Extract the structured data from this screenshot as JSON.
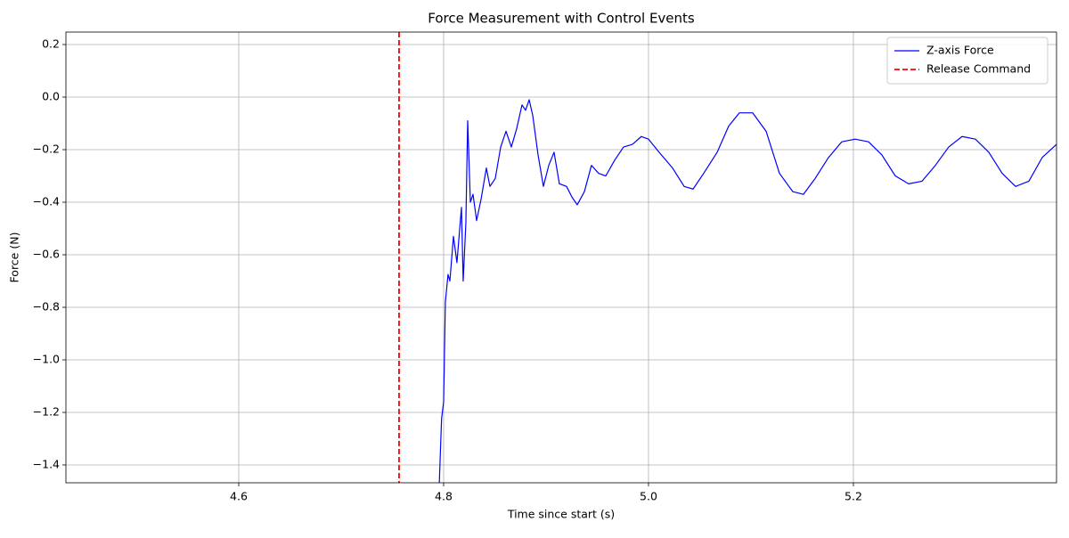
{
  "chart_data": {
    "type": "line",
    "title": "Force Measurement with Control Events",
    "x_label": "Time since start (s)",
    "y_label": "Force (N)",
    "xlim": [
      4.4313,
      5.3983
    ],
    "ylim": [
      -1.4678,
      0.2475
    ],
    "xticks": [
      4.6,
      4.8,
      {
        "value": 5.0,
        "label": "5.0"
      },
      5.2
    ],
    "yticks": [
      {
        "value": -1.4,
        "label": "−1.4"
      },
      {
        "value": -1.2,
        "label": "−1.2"
      },
      {
        "value": -1.0,
        "label": "−1.0"
      },
      {
        "value": -0.8,
        "label": "−0.8"
      },
      {
        "value": -0.6,
        "label": "−0.6"
      },
      {
        "value": -0.4,
        "label": "−0.4"
      },
      {
        "value": -0.2,
        "label": "−0.2"
      },
      {
        "value": 0,
        "label": "0.0"
      },
      0.2
    ],
    "grid": true,
    "legend": "upper right",
    "series": [
      {
        "name": "Z-axis Force",
        "color": "#0000ff",
        "x": [
          4.7955,
          4.798,
          4.8,
          4.8017,
          4.8043,
          4.8061,
          4.8096,
          4.813,
          4.8174,
          4.8191,
          4.8217,
          4.8235,
          4.8261,
          4.8287,
          4.8322,
          4.8365,
          4.8417,
          4.8452,
          4.8504,
          4.8557,
          4.8609,
          4.8661,
          4.8713,
          4.8765,
          4.88,
          4.8835,
          4.887,
          4.8922,
          4.8974,
          4.9026,
          4.9078,
          4.913,
          4.92,
          4.9252,
          4.9304,
          4.9374,
          4.9443,
          4.9513,
          4.9583,
          4.967,
          4.9756,
          4.9843,
          4.993,
          5.0,
          5.0104,
          5.0235,
          5.0348,
          5.0435,
          5.0539,
          5.067,
          5.0783,
          5.0887,
          5.1017,
          5.1148,
          5.1278,
          5.1409,
          5.1513,
          5.1626,
          5.1757,
          5.1887,
          5.2017,
          5.2148,
          5.2278,
          5.2409,
          5.2539,
          5.267,
          5.28,
          5.293,
          5.3061,
          5.3191,
          5.3322,
          5.3452,
          5.3583,
          5.3713,
          5.3843,
          5.3983
        ],
        "values": [
          -1.5,
          -1.224,
          -1.16,
          -0.78,
          -0.675,
          -0.7,
          -0.53,
          -0.63,
          -0.42,
          -0.7,
          -0.48,
          -0.09,
          -0.4,
          -0.37,
          -0.47,
          -0.39,
          -0.27,
          -0.34,
          -0.31,
          -0.19,
          -0.13,
          -0.19,
          -0.12,
          -0.03,
          -0.05,
          -0.01,
          -0.07,
          -0.22,
          -0.34,
          -0.26,
          -0.21,
          -0.33,
          -0.34,
          -0.38,
          -0.41,
          -0.36,
          -0.26,
          -0.29,
          -0.3,
          -0.24,
          -0.19,
          -0.18,
          -0.15,
          -0.16,
          -0.21,
          -0.27,
          -0.34,
          -0.35,
          -0.29,
          -0.21,
          -0.11,
          -0.06,
          -0.06,
          -0.13,
          -0.29,
          -0.36,
          -0.37,
          -0.31,
          -0.23,
          -0.17,
          -0.16,
          -0.17,
          -0.22,
          -0.3,
          -0.33,
          -0.32,
          -0.26,
          -0.19,
          -0.15,
          -0.16,
          -0.21,
          -0.29,
          -0.34,
          -0.32,
          -0.23,
          -0.18
        ]
      }
    ],
    "vlines": [
      {
        "name": "Release Command",
        "x": 4.7565,
        "color": "#ff0000",
        "style": "dashed"
      }
    ]
  }
}
